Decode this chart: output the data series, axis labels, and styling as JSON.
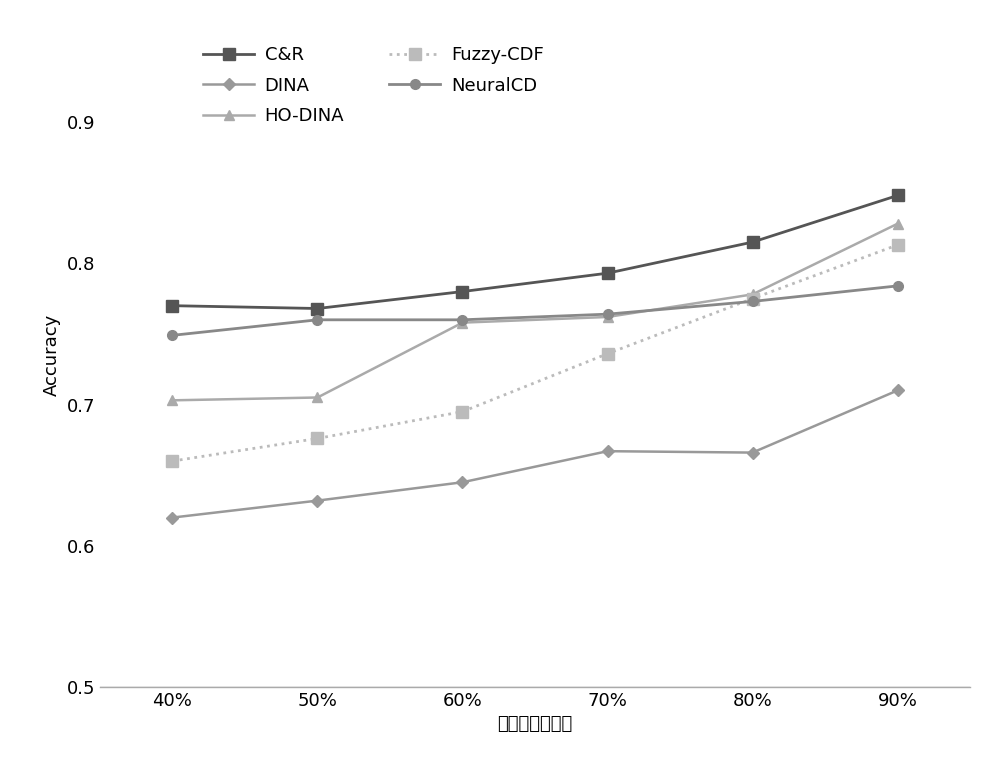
{
  "x_labels": [
    "40%",
    "50%",
    "60%",
    "70%",
    "80%",
    "90%"
  ],
  "x_values": [
    40,
    50,
    60,
    70,
    80,
    90
  ],
  "series": [
    {
      "name": "C&R",
      "values": [
        0.77,
        0.768,
        0.78,
        0.793,
        0.815,
        0.848
      ],
      "color": "#555555",
      "marker": "s",
      "linestyle": "-",
      "linewidth": 2.0,
      "markersize": 8
    },
    {
      "name": "DINA",
      "values": [
        0.62,
        0.632,
        0.645,
        0.667,
        0.666,
        0.71
      ],
      "color": "#999999",
      "marker": "D",
      "linestyle": "-",
      "linewidth": 1.8,
      "markersize": 6
    },
    {
      "name": "HO-DINA",
      "values": [
        0.703,
        0.705,
        0.758,
        0.762,
        0.778,
        0.828
      ],
      "color": "#aaaaaa",
      "marker": "^",
      "linestyle": "-",
      "linewidth": 1.8,
      "markersize": 7
    },
    {
      "name": "Fuzzy-CDF",
      "values": [
        0.66,
        0.676,
        0.695,
        0.736,
        0.775,
        0.813
      ],
      "color": "#bbbbbb",
      "marker": "s",
      "linestyle": ":",
      "linewidth": 2.0,
      "markersize": 8
    },
    {
      "name": "NeuralCD",
      "values": [
        0.749,
        0.76,
        0.76,
        0.764,
        0.773,
        0.784
      ],
      "color": "#888888",
      "marker": "o",
      "linestyle": "-",
      "linewidth": 2.0,
      "markersize": 7
    }
  ],
  "ylabel": "Accuracy",
  "xlabel": "训练集数据比例",
  "ylim": [
    0.5,
    0.97
  ],
  "yticks": [
    0.5,
    0.6,
    0.7,
    0.8,
    0.9
  ],
  "background_color": "#ffffff",
  "legend_fontsize": 13,
  "axis_fontsize": 13,
  "tick_fontsize": 13
}
